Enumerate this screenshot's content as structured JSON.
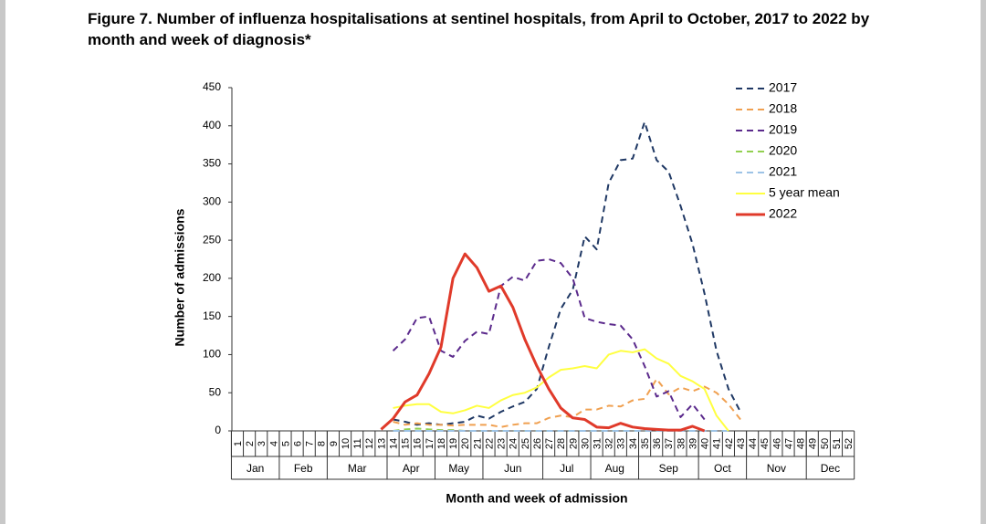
{
  "chart_data": {
    "type": "line",
    "title": "Figure 7. Number of influenza hospitalisations at sentinel hospitals, from April to October, 2017 to 2022 by month and week of diagnosis*",
    "xlabel": "Month and week of admission",
    "ylabel": "Number of admissions",
    "categories": [
      "1",
      "2",
      "3",
      "4",
      "5",
      "6",
      "7",
      "8",
      "9",
      "10",
      "11",
      "12",
      "13",
      "14",
      "15",
      "16",
      "17",
      "18",
      "19",
      "20",
      "21",
      "22",
      "23",
      "24",
      "25",
      "26",
      "27",
      "28",
      "29",
      "30",
      "31",
      "32",
      "33",
      "34",
      "35",
      "36",
      "37",
      "38",
      "39",
      "40",
      "41",
      "42",
      "43",
      "44",
      "45",
      "46",
      "47",
      "48",
      "49",
      "50",
      "51",
      "52"
    ],
    "x_groups": [
      {
        "label": "Jan",
        "start": 1,
        "end": 4
      },
      {
        "label": "Feb",
        "start": 5,
        "end": 8
      },
      {
        "label": "Mar",
        "start": 9,
        "end": 13
      },
      {
        "label": "Apr",
        "start": 14,
        "end": 17
      },
      {
        "label": "May",
        "start": 18,
        "end": 21
      },
      {
        "label": "Jun",
        "start": 22,
        "end": 26
      },
      {
        "label": "Jul",
        "start": 27,
        "end": 30
      },
      {
        "label": "Aug",
        "start": 31,
        "end": 34
      },
      {
        "label": "Sep",
        "start": 35,
        "end": 39
      },
      {
        "label": "Oct",
        "start": 40,
        "end": 43
      },
      {
        "label": "Nov",
        "start": 44,
        "end": 48
      },
      {
        "label": "Dec",
        "start": 49,
        "end": 52
      }
    ],
    "ylim": [
      0,
      450
    ],
    "yticks": [
      0,
      50,
      100,
      150,
      200,
      250,
      300,
      350,
      400,
      450
    ],
    "grid": false,
    "legend": "upper right",
    "series": [
      {
        "name": "2017",
        "color": "#1f3864",
        "dashed": true,
        "values": [
          null,
          null,
          null,
          null,
          null,
          null,
          null,
          null,
          null,
          null,
          null,
          null,
          null,
          15,
          12,
          8,
          10,
          8,
          10,
          12,
          20,
          16,
          25,
          32,
          38,
          55,
          110,
          160,
          185,
          255,
          238,
          325,
          355,
          357,
          405,
          355,
          340,
          295,
          245,
          180,
          105,
          55,
          25,
          null,
          null,
          null,
          null,
          null,
          null,
          null,
          null,
          null
        ]
      },
      {
        "name": "2018",
        "color": "#f0a050",
        "dashed": true,
        "values": [
          null,
          null,
          null,
          null,
          null,
          null,
          null,
          null,
          null,
          null,
          null,
          null,
          null,
          12,
          8,
          10,
          8,
          8,
          7,
          8,
          8,
          8,
          5,
          8,
          10,
          10,
          17,
          20,
          18,
          28,
          28,
          33,
          32,
          40,
          42,
          68,
          48,
          57,
          52,
          58,
          50,
          35,
          15,
          null,
          null,
          null,
          null,
          null,
          null,
          null,
          null,
          null
        ]
      },
      {
        "name": "2019",
        "color": "#5b2a8c",
        "dashed": true,
        "values": [
          null,
          null,
          null,
          null,
          null,
          null,
          null,
          null,
          null,
          null,
          null,
          null,
          null,
          105,
          120,
          148,
          150,
          105,
          97,
          118,
          130,
          127,
          190,
          202,
          197,
          223,
          225,
          220,
          200,
          148,
          143,
          140,
          138,
          120,
          85,
          45,
          52,
          18,
          35,
          15,
          null,
          null,
          null,
          null,
          null,
          null,
          null,
          null,
          null,
          null,
          null,
          null
        ]
      },
      {
        "name": "2020",
        "color": "#92d050",
        "dashed": true,
        "values": [
          null,
          null,
          null,
          null,
          null,
          null,
          null,
          null,
          null,
          null,
          null,
          null,
          null,
          0,
          2,
          3,
          2,
          1,
          1,
          0,
          0,
          0,
          0,
          0,
          0,
          0,
          0,
          0,
          0,
          0,
          0,
          0,
          0,
          0,
          0,
          0,
          0,
          0,
          0,
          0,
          0,
          0,
          null,
          null,
          null,
          null,
          null,
          null,
          null,
          null,
          null,
          null
        ]
      },
      {
        "name": "2021",
        "color": "#9dc3e6",
        "dashed": true,
        "values": [
          null,
          null,
          null,
          null,
          null,
          null,
          null,
          null,
          null,
          null,
          null,
          null,
          null,
          0,
          0,
          0,
          0,
          0,
          0,
          0,
          0,
          0,
          0,
          0,
          0,
          0,
          0,
          0,
          0,
          0,
          0,
          0,
          0,
          0,
          0,
          0,
          0,
          0,
          0,
          0,
          0,
          0,
          null,
          null,
          null,
          null,
          null,
          null,
          null,
          null,
          null,
          null
        ]
      },
      {
        "name": "5 year mean",
        "color": "#ffff40",
        "dashed": false,
        "values": [
          null,
          null,
          null,
          null,
          null,
          null,
          null,
          null,
          null,
          null,
          null,
          null,
          null,
          30,
          33,
          35,
          35,
          25,
          23,
          27,
          33,
          30,
          40,
          47,
          50,
          57,
          70,
          80,
          82,
          85,
          82,
          100,
          105,
          103,
          107,
          95,
          88,
          72,
          65,
          55,
          20,
          0,
          null,
          null,
          null,
          null,
          null,
          null,
          null,
          null,
          null,
          null
        ]
      },
      {
        "name": "2022",
        "color": "#e03a2a",
        "dashed": false,
        "width": 3,
        "values": [
          null,
          null,
          null,
          null,
          null,
          null,
          null,
          null,
          null,
          null,
          null,
          null,
          2,
          16,
          38,
          47,
          75,
          110,
          200,
          232,
          214,
          183,
          190,
          162,
          120,
          85,
          55,
          30,
          17,
          15,
          5,
          4,
          10,
          5,
          3,
          2,
          1,
          1,
          6,
          0,
          null,
          null,
          null,
          null,
          null,
          null,
          null,
          null,
          null,
          null,
          null,
          null
        ]
      }
    ]
  }
}
